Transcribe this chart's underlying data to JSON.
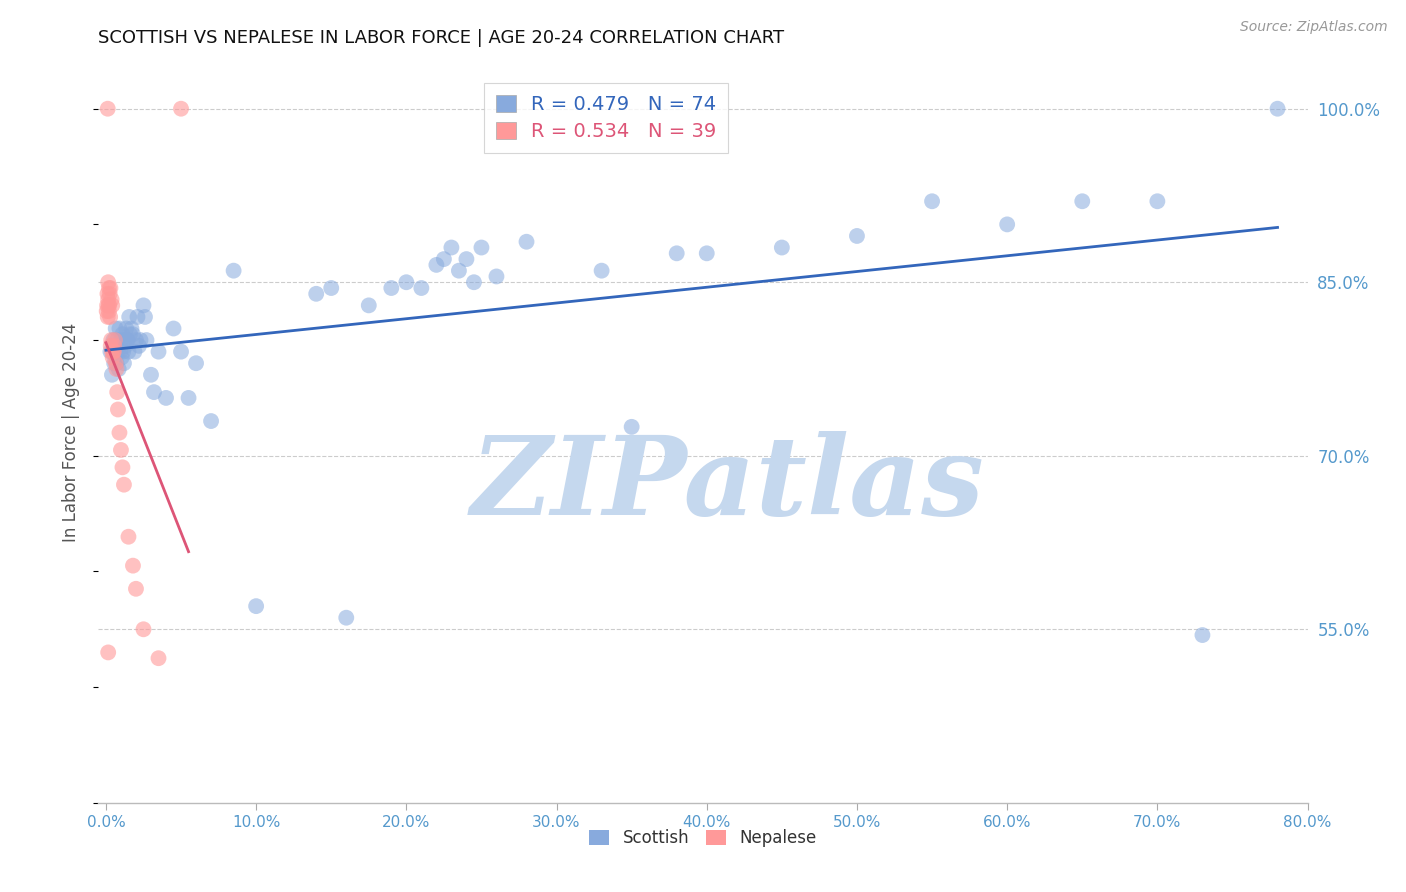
{
  "title": "SCOTTISH VS NEPALESE IN LABOR FORCE | AGE 20-24 CORRELATION CHART",
  "source": "Source: ZipAtlas.com",
  "ylabel": "In Labor Force | Age 20-24",
  "xlim_min": -0.5,
  "xlim_max": 80.0,
  "ylim_min": 40.0,
  "ylim_max": 104.0,
  "ytick_vals": [
    55.0,
    70.0,
    85.0,
    100.0
  ],
  "xtick_vals": [
    0.0,
    10.0,
    20.0,
    30.0,
    40.0,
    50.0,
    60.0,
    70.0,
    80.0
  ],
  "legend_blue_R": "R = 0.479",
  "legend_blue_N": "N = 74",
  "legend_pink_R": "R = 0.534",
  "legend_pink_N": "N = 39",
  "blue_fill": "#88AADD",
  "pink_fill": "#FF9999",
  "line_blue": "#3366BB",
  "line_pink": "#DD5577",
  "watermark": "ZIPatlas",
  "watermark_color": "#C5D8EE",
  "title_color": "#111111",
  "tick_color": "#5599CC",
  "source_color": "#999999",
  "grid_color": "#CCCCCC",
  "scatter_alpha": 0.55,
  "scatter_size": 130,
  "scottish_x": [
    0.3,
    0.4,
    0.5,
    0.55,
    0.6,
    0.65,
    0.7,
    0.75,
    0.8,
    0.85,
    0.9,
    0.95,
    1.0,
    1.05,
    1.1,
    1.15,
    1.2,
    1.25,
    1.3,
    1.35,
    1.4,
    1.45,
    1.5,
    1.55,
    1.6,
    1.7,
    1.8,
    1.9,
    2.0,
    2.1,
    2.2,
    2.3,
    2.5,
    2.6,
    2.7,
    3.0,
    3.2,
    3.5,
    4.0,
    4.5,
    5.0,
    5.5,
    6.0,
    7.0,
    8.5,
    10.0,
    14.0,
    15.0,
    16.0,
    17.5,
    19.0,
    20.0,
    21.0,
    22.0,
    22.5,
    23.0,
    23.5,
    24.0,
    24.5,
    25.0,
    26.0,
    28.0,
    33.0,
    35.0,
    38.0,
    40.0,
    45.0,
    50.0,
    55.0,
    60.0,
    65.0,
    70.0,
    73.0,
    78.0
  ],
  "scottish_y": [
    79.0,
    77.0,
    80.0,
    78.0,
    79.5,
    81.0,
    78.0,
    80.0,
    79.0,
    77.5,
    81.0,
    79.0,
    80.0,
    78.5,
    80.5,
    79.0,
    78.0,
    80.0,
    79.5,
    81.0,
    80.0,
    80.0,
    79.0,
    82.0,
    80.5,
    81.0,
    80.5,
    79.0,
    80.0,
    82.0,
    79.5,
    80.0,
    83.0,
    82.0,
    80.0,
    77.0,
    75.5,
    79.0,
    75.0,
    81.0,
    79.0,
    75.0,
    78.0,
    73.0,
    86.0,
    57.0,
    84.0,
    84.5,
    56.0,
    83.0,
    84.5,
    85.0,
    84.5,
    86.5,
    87.0,
    88.0,
    86.0,
    87.0,
    85.0,
    88.0,
    85.5,
    88.5,
    86.0,
    72.5,
    87.5,
    87.5,
    88.0,
    89.0,
    92.0,
    90.0,
    92.0,
    92.0,
    54.5,
    100.0
  ],
  "nepalese_x": [
    0.05,
    0.08,
    0.1,
    0.12,
    0.15,
    0.15,
    0.18,
    0.2,
    0.2,
    0.22,
    0.25,
    0.28,
    0.3,
    0.32,
    0.35,
    0.38,
    0.4,
    0.42,
    0.45,
    0.5,
    0.52,
    0.55,
    0.6,
    0.65,
    0.7,
    0.75,
    0.8,
    0.9,
    1.0,
    1.1,
    1.2,
    1.5,
    1.8,
    2.0,
    2.5,
    3.5,
    5.0,
    0.12,
    0.15
  ],
  "nepalese_y": [
    82.5,
    83.0,
    84.0,
    82.0,
    83.5,
    85.0,
    83.0,
    84.5,
    82.5,
    83.0,
    84.0,
    82.0,
    84.5,
    79.5,
    80.0,
    83.5,
    79.0,
    83.0,
    78.5,
    79.0,
    79.0,
    79.5,
    80.0,
    78.0,
    77.5,
    75.5,
    74.0,
    72.0,
    70.5,
    69.0,
    67.5,
    63.0,
    60.5,
    58.5,
    55.0,
    52.5,
    100.0,
    100.0,
    53.0
  ]
}
